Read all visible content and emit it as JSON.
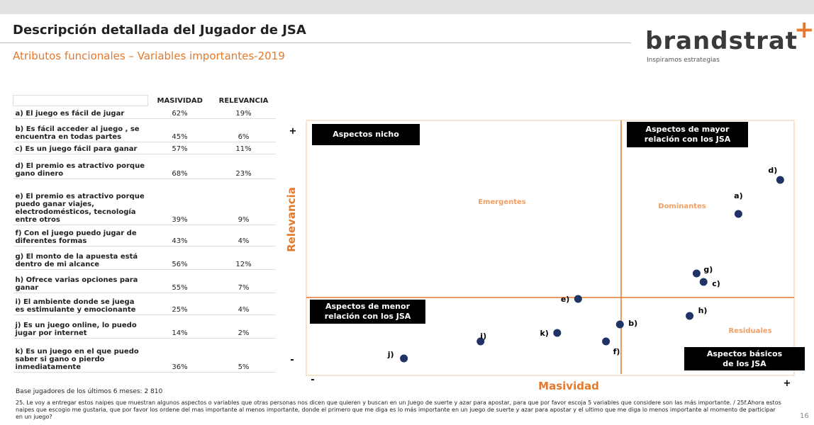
{
  "header": {
    "title": "Descripción detallada del Jugador de JSA",
    "subtitle": "Atributos funcionales – Variables importantes-2019",
    "logo": "brandstrat",
    "logo_mark": "+",
    "tagline": "Inspiramos estrategias"
  },
  "table": {
    "columns": [
      "MASIVIDAD",
      "RELEVANCIA"
    ],
    "rows": [
      [
        "a) El juego es fácil de jugar",
        "62%",
        "19%"
      ],
      [
        "b) Es fácil acceder al juego , se encuentra en todas partes",
        "45%",
        "6%"
      ],
      [
        "c) Es un juego fácil para ganar",
        "57%",
        "11%"
      ],
      [
        "d) El premio es atractivo porque gano dinero",
        "68%",
        "23%"
      ],
      [
        "e) El premio es atractivo porque puedo ganar viajes, electrodomésticos, tecnología entre otros",
        "39%",
        "9%"
      ],
      [
        "f) Con el juego puedo jugar de diferentes formas",
        "43%",
        "4%"
      ],
      [
        "g) El monto de la apuesta está dentro de mi alcance",
        "56%",
        "12%"
      ],
      [
        "h) Ofrece varias opciones para ganar",
        "55%",
        "7%"
      ],
      [
        "i) El ambiente donde se juega es estimulante y emocionante",
        "25%",
        "4%"
      ],
      [
        "j) Es un juego online, lo puedo jugar por internet",
        "14%",
        "2%"
      ],
      [
        "k) Es un juego en el que puedo saber si gano o pierdo inmediatamente",
        "36%",
        "5%"
      ]
    ]
  },
  "chart": {
    "type": "scatter",
    "xlabel": "Masividad",
    "ylabel": "Relevancia",
    "xlim": [
      0,
      70
    ],
    "ylim": [
      0,
      30
    ],
    "labels": [
      "a)",
      "b)",
      "c)",
      "d)",
      "e)",
      "f)",
      "g)",
      "h)",
      "i)",
      "j)",
      "k)"
    ],
    "x": [
      62,
      45,
      57,
      68,
      39,
      43,
      56,
      55,
      25,
      14,
      36
    ],
    "y": [
      19,
      6,
      11,
      23,
      9,
      4,
      12,
      7,
      4,
      2,
      5
    ],
    "color": "#1f3366",
    "quadrants": [
      "Aspectos nicho",
      "Aspectos de mayor relación con los  JSA",
      "Aspectos de menor relación con los  JSA",
      "Aspectos básicos de los JSA"
    ],
    "zones": [
      "Emergentes",
      "Dominantes",
      "Residuales"
    ],
    "signs": {
      "plus": "+",
      "minus": "-"
    }
  },
  "footer": {
    "base": "Base jugadores de los últimos 6 meses: 2 810",
    "note": "25. Le voy a entregar estos naipes que muestran algunos aspectos o variables que otras personas nos dicen que quieren y buscan en un Juego de suerte y azar para apostar, para que por favor escoja 5 variables que considere son las más importante. / 25f.Ahora estos naipes que escogio me gustaria, que por favor los ordene del mas importante al menos importante, donde el primero que me diga es lo más importante en un juego de suerte y azar para apostar y el ultimo que me diga lo menos importante al momento de participar en un juego?",
    "page": "16"
  }
}
